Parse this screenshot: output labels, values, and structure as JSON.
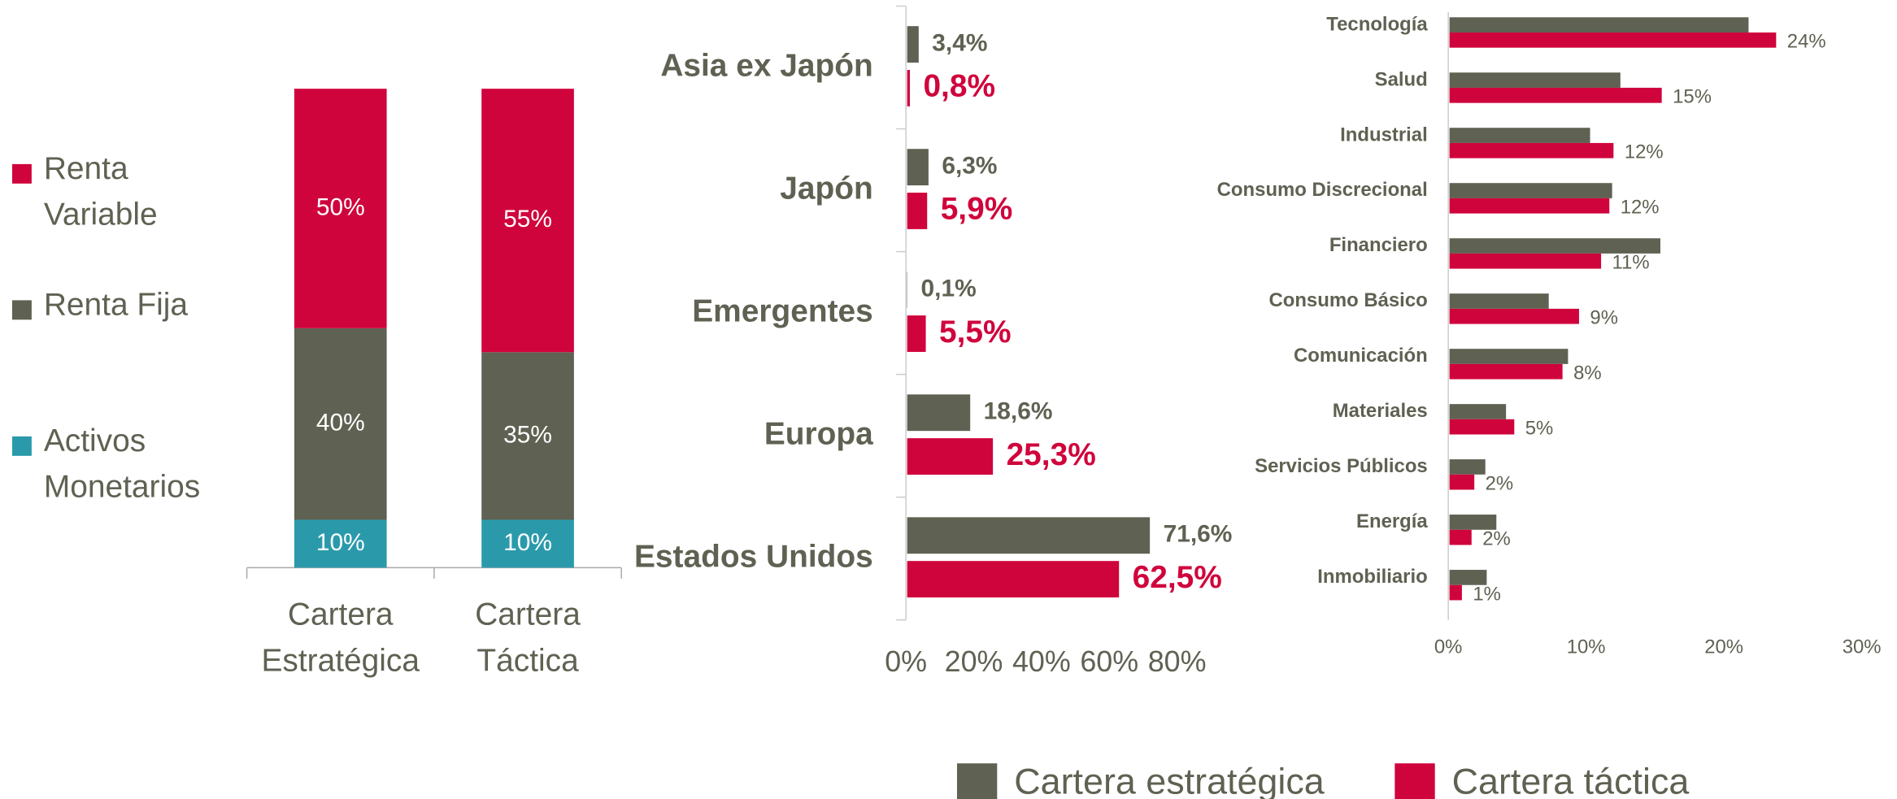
{
  "chart_data": [
    {
      "type": "stacked_bar",
      "categories": [
        "Cartera Estratégica",
        "Cartera Táctica"
      ],
      "ylim": [
        0,
        100
      ],
      "series": [
        {
          "name": "Activos Monetarios",
          "color": "#2a9aab",
          "values": [
            10,
            10
          ],
          "value_labels": [
            "10%",
            "10%"
          ]
        },
        {
          "name": "Renta Fija",
          "color": "#5f6152",
          "values": [
            40,
            35
          ],
          "value_labels": [
            "40%",
            "35%"
          ]
        },
        {
          "name": "Renta Variable",
          "color": "#d0043c",
          "values": [
            50,
            55
          ],
          "value_labels": [
            "50%",
            "55%"
          ]
        }
      ]
    },
    {
      "type": "hbar",
      "categories": [
        "Asia ex Japón",
        "Japón",
        "Emergentes",
        "Europa",
        "Estados Unidos"
      ],
      "xlim": [
        0,
        80
      ],
      "xticks": [
        {
          "value": 0,
          "label": "0%"
        },
        {
          "value": 20,
          "label": "20%"
        },
        {
          "value": 40,
          "label": "40%"
        },
        {
          "value": 60,
          "label": "60%"
        },
        {
          "value": 80,
          "label": "80%"
        }
      ],
      "series": [
        {
          "name": "Cartera estratégica",
          "color": "#5f6152",
          "values": [
            3.4,
            6.3,
            0.1,
            18.6,
            71.6
          ],
          "value_labels": [
            "3,4%",
            "6,3%",
            "0,1%",
            "18,6%",
            "71,6%"
          ]
        },
        {
          "name": "Cartera táctica",
          "color": "#d0043c",
          "values": [
            0.8,
            5.9,
            5.5,
            25.3,
            62.5
          ],
          "value_labels": [
            "0,8%",
            "5,9%",
            "5,5%",
            "25,3%",
            "62,5%"
          ]
        }
      ]
    },
    {
      "type": "hbar",
      "categories": [
        "Tecnología",
        "Salud",
        "Industrial",
        "Consumo Discrecional",
        "Financiero",
        "Consumo Básico",
        "Comunicación",
        "Materiales",
        "Servicios Públicos",
        "Energía",
        "Inmobiliario"
      ],
      "xlim": [
        0,
        30
      ],
      "xticks": [
        {
          "value": 0,
          "label": "0%"
        },
        {
          "value": 10,
          "label": "10%"
        },
        {
          "value": 20,
          "label": "20%"
        },
        {
          "value": 30,
          "label": "30%"
        }
      ],
      "series": [
        {
          "color": "#5f6152",
          "values": [
            21.7,
            12.4,
            10.2,
            11.8,
            15.3,
            7.2,
            8.6,
            4.1,
            2.6,
            3.4,
            2.7
          ]
        },
        {
          "color": "#d0043c",
          "values": [
            23.7,
            15.4,
            11.9,
            11.6,
            11.0,
            9.4,
            8.2,
            4.7,
            1.8,
            1.6,
            0.9
          ],
          "value_labels": [
            "24%",
            "15%",
            "12%",
            "12%",
            "11%",
            "9%",
            "8%",
            "5%",
            "2%",
            "2%",
            "1%"
          ]
        }
      ]
    }
  ]
}
